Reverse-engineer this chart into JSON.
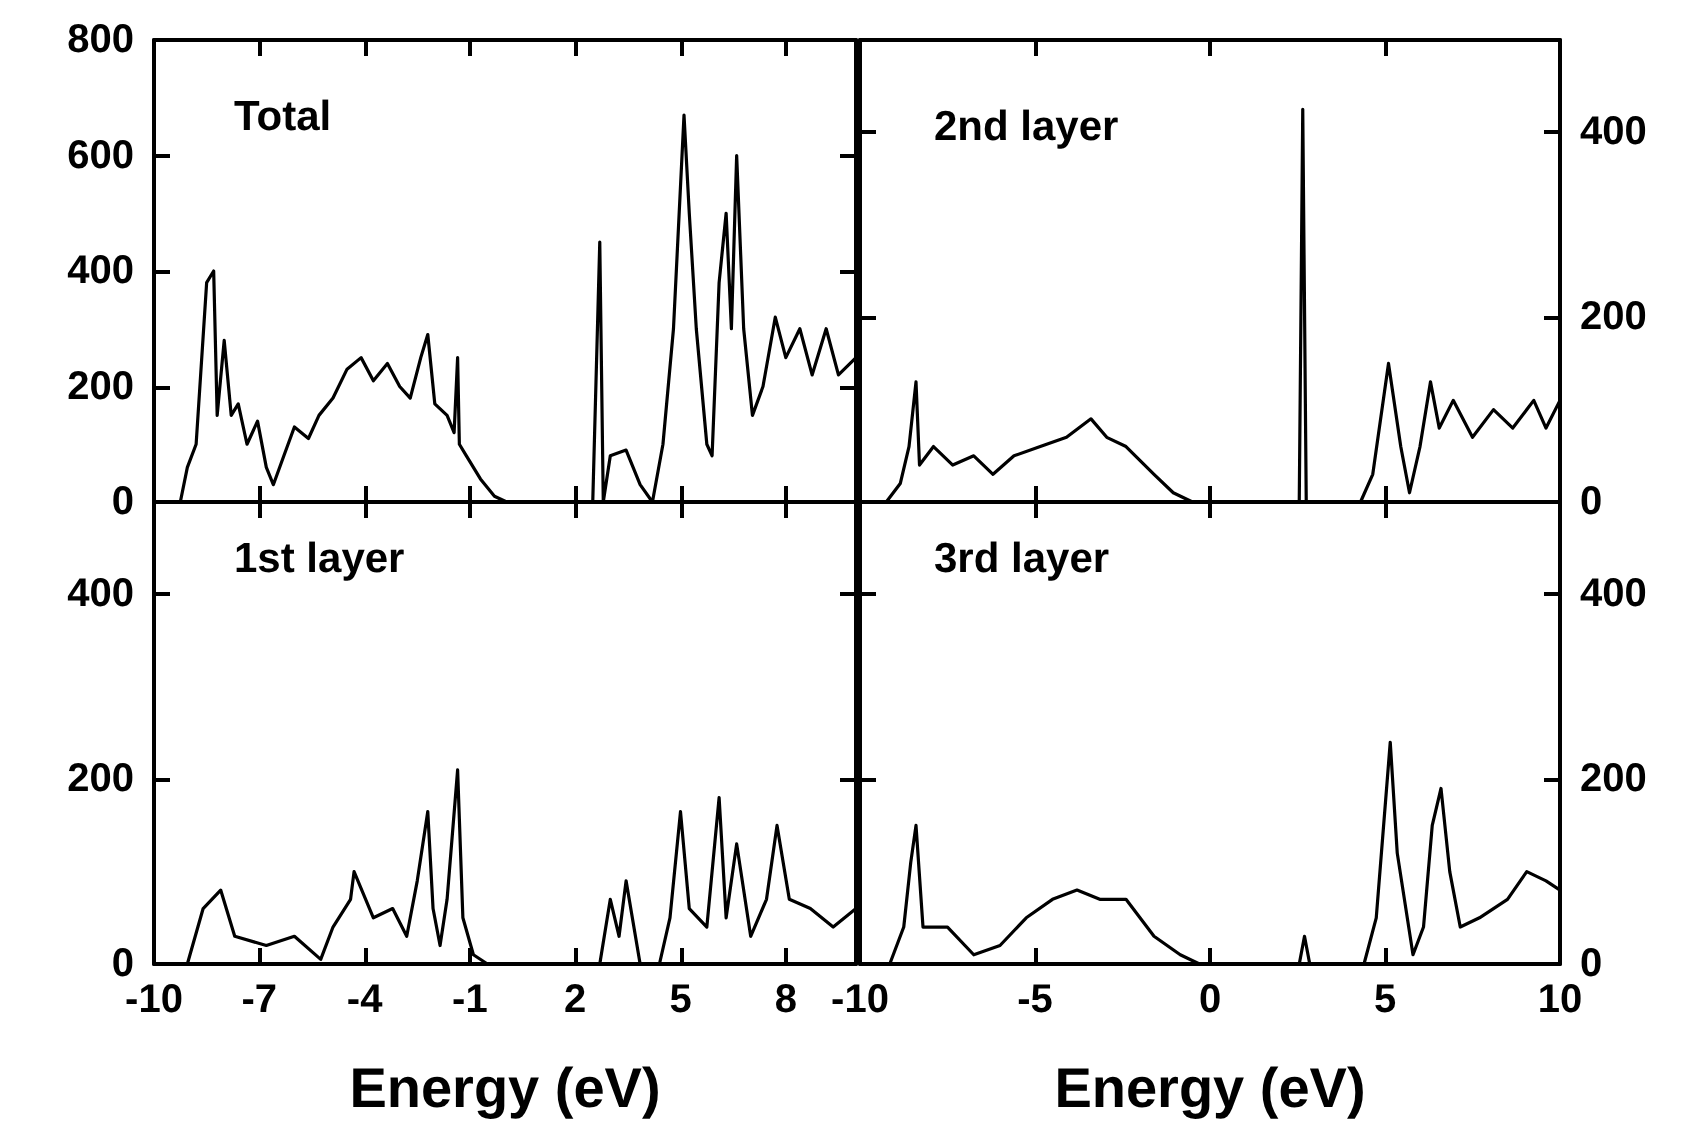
{
  "chart_data": [
    {
      "type": "line",
      "title": "Total",
      "xlim": [
        -10,
        10
      ],
      "xticks": [
        -10,
        -7,
        -4,
        -1,
        2,
        5,
        8
      ],
      "ylim": [
        0,
        800
      ],
      "yticks": [
        0,
        200,
        400,
        600,
        800
      ],
      "tick_labels": "y",
      "x": [
        -9.25,
        -9.05,
        -8.8,
        -8.5,
        -8.3,
        -8.2,
        -8.0,
        -7.8,
        -7.6,
        -7.35,
        -7.05,
        -6.8,
        -6.6,
        -6.3,
        -6.0,
        -5.6,
        -5.3,
        -4.9,
        -4.5,
        -4.1,
        -3.75,
        -3.35,
        -3.0,
        -2.7,
        -2.4,
        -2.2,
        -2.0,
        -1.65,
        -1.45,
        -1.35,
        -1.3,
        -1.1,
        -0.7,
        -0.3,
        0.05,
        2.5,
        2.7,
        2.8,
        3.0,
        3.45,
        3.85,
        4.2,
        4.5,
        4.8,
        5.1,
        5.25,
        5.45,
        5.75,
        5.9,
        6.1,
        6.3,
        6.45,
        6.6,
        6.8,
        7.05,
        7.35,
        7.7,
        8.0,
        8.4,
        8.75,
        9.15,
        9.5,
        10
      ],
      "series": [
        {
          "color": "#000000",
          "values": [
            0,
            60,
            100,
            380,
            400,
            150,
            280,
            150,
            170,
            100,
            140,
            60,
            30,
            80,
            130,
            110,
            150,
            180,
            230,
            250,
            210,
            240,
            200,
            180,
            250,
            290,
            170,
            150,
            120,
            250,
            100,
            80,
            40,
            10,
            0,
            0,
            450,
            0,
            80,
            90,
            30,
            0,
            100,
            300,
            670,
            500,
            300,
            100,
            80,
            380,
            500,
            300,
            600,
            300,
            150,
            200,
            320,
            250,
            300,
            220,
            300,
            220,
            250
          ]
        }
      ]
    },
    {
      "type": "line",
      "title": "2nd layer",
      "xlim": [
        -10,
        10
      ],
      "xticks": [
        -10,
        -5,
        0,
        5,
        10
      ],
      "y2lim": [
        0,
        500
      ],
      "y2ticks": [
        0,
        200,
        400
      ],
      "tick_labels": "y",
      "x": [
        -9.25,
        -8.85,
        -8.6,
        -8.4,
        -8.3,
        -7.9,
        -7.35,
        -6.75,
        -6.2,
        -5.6,
        -4.85,
        -4.1,
        -3.4,
        -2.95,
        -2.4,
        -1.6,
        -1.05,
        -0.5,
        2.55,
        2.65,
        2.75,
        4.3,
        4.65,
        5.1,
        5.45,
        5.7,
        6.0,
        6.3,
        6.55,
        6.95,
        7.5,
        8.1,
        8.65,
        9.25,
        9.6,
        10
      ],
      "series": [
        {
          "color": "#000000",
          "axis": "y2",
          "values": [
            0,
            20,
            60,
            130,
            40,
            60,
            40,
            50,
            30,
            50,
            60,
            70,
            90,
            70,
            60,
            30,
            10,
            0,
            0,
            425,
            0,
            0,
            30,
            150,
            60,
            10,
            60,
            130,
            80,
            110,
            70,
            100,
            80,
            110,
            80,
            110
          ]
        }
      ]
    },
    {
      "type": "line",
      "title": "1st layer",
      "xlabel": "Energy (eV)",
      "xlim": [
        -10,
        10
      ],
      "xticks": [
        -10,
        -7,
        -4,
        -1,
        2,
        5,
        8
      ],
      "ylim": [
        0,
        500
      ],
      "yticks": [
        0,
        200,
        400
      ],
      "x": [
        -9.05,
        -8.6,
        -8.1,
        -7.7,
        -6.8,
        -6.0,
        -5.25,
        -4.9,
        -4.4,
        -4.3,
        -3.75,
        -3.2,
        -2.8,
        -2.5,
        -2.2,
        -2.05,
        -1.85,
        -1.65,
        -1.35,
        -1.2,
        -0.9,
        -0.5,
        2.7,
        3.0,
        3.25,
        3.45,
        3.85,
        4.4,
        4.7,
        5.0,
        5.25,
        5.75,
        6.1,
        6.3,
        6.6,
        7.0,
        7.45,
        7.75,
        8.1,
        8.7,
        9.35,
        10
      ],
      "series": [
        {
          "color": "#000000",
          "values": [
            0,
            60,
            80,
            30,
            20,
            30,
            5,
            40,
            70,
            100,
            50,
            60,
            30,
            90,
            165,
            60,
            20,
            70,
            210,
            50,
            10,
            0,
            0,
            70,
            30,
            90,
            0,
            0,
            50,
            165,
            60,
            40,
            180,
            50,
            130,
            30,
            70,
            150,
            70,
            60,
            40,
            60
          ]
        }
      ]
    },
    {
      "type": "line",
      "title": "3rd layer",
      "xlabel": "Energy (eV)",
      "xlim": [
        -10,
        10
      ],
      "xticks": [
        -10,
        -5,
        0,
        5,
        10
      ],
      "y2lim": [
        0,
        500
      ],
      "y2ticks": [
        0,
        200,
        400
      ],
      "x": [
        -9.15,
        -8.75,
        -8.55,
        -8.4,
        -8.2,
        -7.5,
        -6.75,
        -6.0,
        -5.25,
        -4.5,
        -3.8,
        -3.15,
        -2.4,
        -1.6,
        -0.85,
        -0.3,
        2.55,
        2.7,
        2.85,
        4.4,
        4.75,
        5.15,
        5.35,
        5.8,
        6.1,
        6.35,
        6.6,
        6.85,
        7.15,
        7.7,
        8.5,
        9.05,
        9.6,
        10
      ],
      "series": [
        {
          "color": "#000000",
          "axis": "y2",
          "values": [
            0,
            40,
            110,
            150,
            40,
            40,
            10,
            20,
            50,
            70,
            80,
            70,
            70,
            30,
            10,
            0,
            0,
            30,
            0,
            0,
            50,
            240,
            120,
            10,
            40,
            150,
            190,
            100,
            40,
            50,
            70,
            100,
            90,
            80
          ]
        }
      ]
    }
  ]
}
